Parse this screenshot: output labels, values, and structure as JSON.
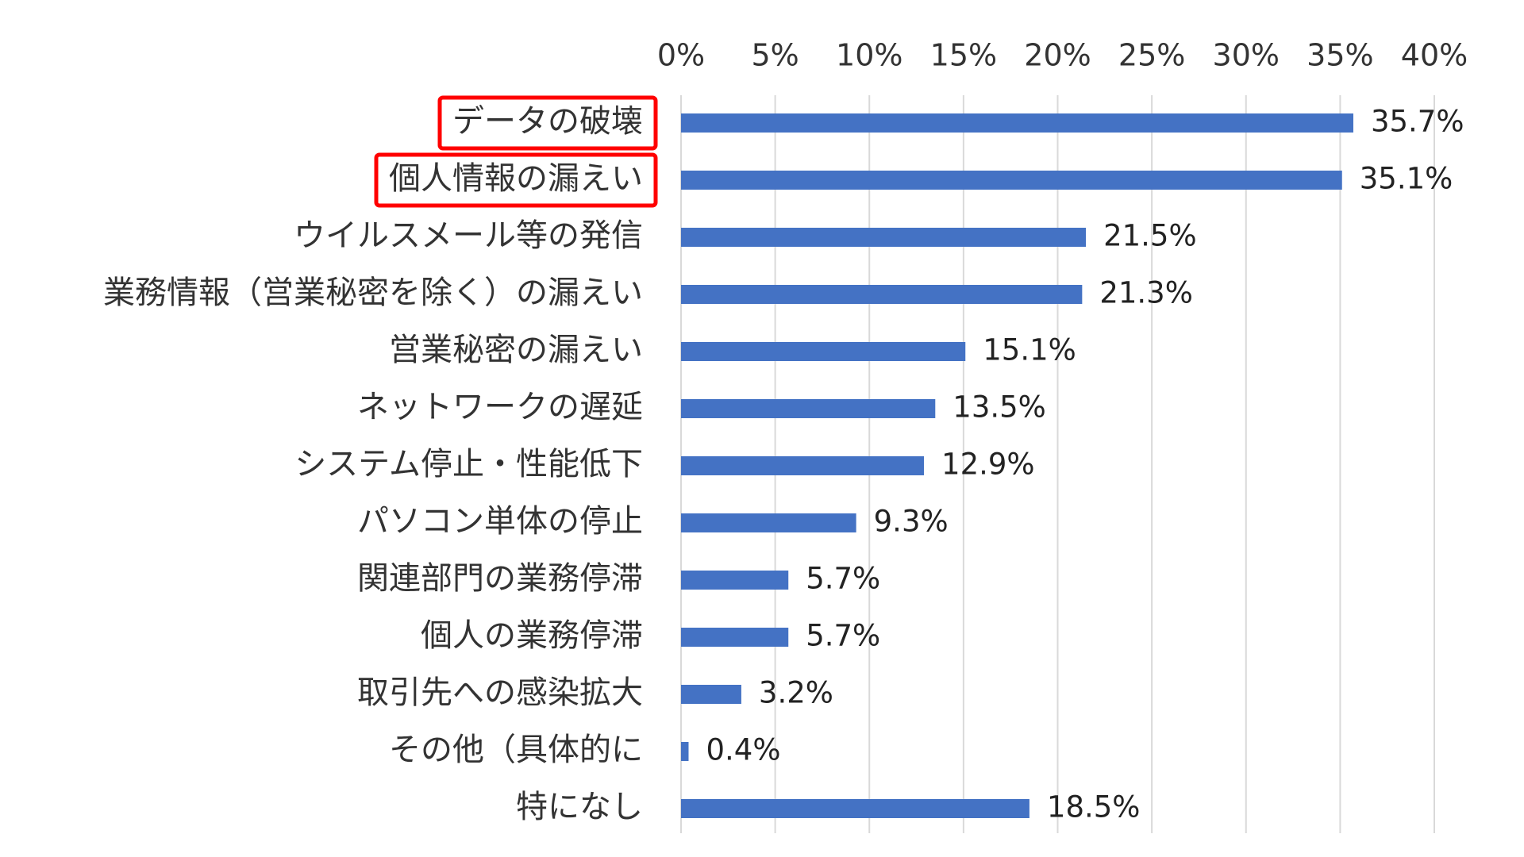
{
  "colors": {
    "bar": "#4472C4",
    "highlight_box": "#FF0000",
    "grid": "#D9D9D9",
    "text": "#333333"
  },
  "chart_data": {
    "type": "bar",
    "orientation": "horizontal",
    "title": "",
    "xlabel": "",
    "ylabel": "",
    "xlim": [
      0,
      40
    ],
    "x_ticks": [
      0,
      5,
      10,
      15,
      20,
      25,
      30,
      35,
      40
    ],
    "x_tick_labels": [
      "0%",
      "5%",
      "10%",
      "15%",
      "20%",
      "25%",
      "30%",
      "35%",
      "40%"
    ],
    "axis_position": "top",
    "grid": true,
    "categories": [
      "データの破壊",
      "個人情報の漏えい",
      "ウイルスメール等の発信",
      "業務情報（営業秘密を除く）の漏えい",
      "営業秘密の漏えい",
      "ネットワークの遅延",
      "システム停止・性能低下",
      "パソコン単体の停止",
      "関連部門の業務停滞",
      "個人の業務停滞",
      "取引先への感染拡大",
      "その他（具体的に",
      "特になし"
    ],
    "values": [
      35.7,
      35.1,
      21.5,
      21.3,
      15.1,
      13.5,
      12.9,
      9.3,
      5.7,
      5.7,
      3.2,
      0.4,
      18.5
    ],
    "value_labels": [
      "35.7%",
      "35.1%",
      "21.5%",
      "21.3%",
      "15.1%",
      "13.5%",
      "12.9%",
      "9.3%",
      "5.7%",
      "5.7%",
      "3.2%",
      "0.4%",
      "18.5%"
    ],
    "highlighted_categories": [
      0,
      1
    ]
  }
}
